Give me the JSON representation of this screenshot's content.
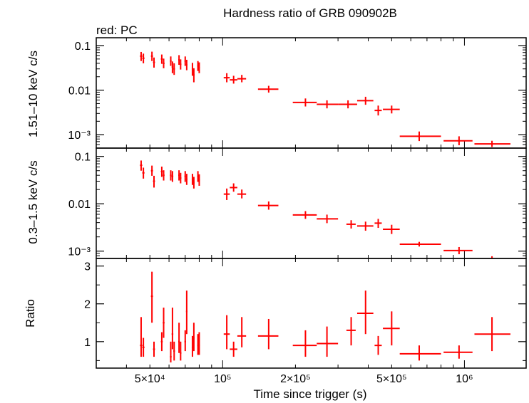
{
  "title": "Hardness ratio of GRB 090902B",
  "legend_label": "red: PC",
  "colors": {
    "data": "#ff0000",
    "axes": "#000000",
    "background": "#ffffff"
  },
  "chart_data": [
    {
      "type": "scatter",
      "panel": "hard",
      "ylabel": "1.51–10 keV c/s",
      "xscale": "log",
      "yscale": "log",
      "xlim": [
        30000,
        1800000
      ],
      "ylim": [
        0.0005,
        0.15
      ],
      "yticks": [
        {
          "value": 0.1,
          "label": "0.1"
        },
        {
          "value": 0.01,
          "label": "0.01"
        },
        {
          "value": 0.001,
          "label": "10⁻³"
        }
      ],
      "series": [
        {
          "points": [
            {
              "x": 46000,
              "x_lo": 45500,
              "x_hi": 46500,
              "y": 0.058,
              "y_lo": 0.045,
              "y_hi": 0.072
            },
            {
              "x": 47000,
              "x_lo": 46500,
              "x_hi": 47500,
              "y": 0.052,
              "y_lo": 0.04,
              "y_hi": 0.066
            },
            {
              "x": 51000,
              "x_lo": 50500,
              "x_hi": 51500,
              "y": 0.058,
              "y_lo": 0.045,
              "y_hi": 0.073
            },
            {
              "x": 52000,
              "x_lo": 51500,
              "x_hi": 52500,
              "y": 0.042,
              "y_lo": 0.032,
              "y_hi": 0.054
            },
            {
              "x": 56000,
              "x_lo": 55500,
              "x_hi": 56500,
              "y": 0.05,
              "y_lo": 0.039,
              "y_hi": 0.063
            },
            {
              "x": 57000,
              "x_lo": 56500,
              "x_hi": 57500,
              "y": 0.04,
              "y_lo": 0.031,
              "y_hi": 0.051
            },
            {
              "x": 61000,
              "x_lo": 60500,
              "x_hi": 61500,
              "y": 0.045,
              "y_lo": 0.035,
              "y_hi": 0.057
            },
            {
              "x": 62000,
              "x_lo": 61500,
              "x_hi": 62500,
              "y": 0.033,
              "y_lo": 0.024,
              "y_hi": 0.044
            },
            {
              "x": 63000,
              "x_lo": 62500,
              "x_hi": 63500,
              "y": 0.03,
              "y_lo": 0.022,
              "y_hi": 0.04
            },
            {
              "x": 66000,
              "x_lo": 65500,
              "x_hi": 66500,
              "y": 0.048,
              "y_lo": 0.037,
              "y_hi": 0.061
            },
            {
              "x": 67000,
              "x_lo": 66500,
              "x_hi": 67500,
              "y": 0.038,
              "y_lo": 0.029,
              "y_hi": 0.049
            },
            {
              "x": 70000,
              "x_lo": 69500,
              "x_hi": 70500,
              "y": 0.045,
              "y_lo": 0.035,
              "y_hi": 0.057
            },
            {
              "x": 71000,
              "x_lo": 70500,
              "x_hi": 71500,
              "y": 0.037,
              "y_lo": 0.028,
              "y_hi": 0.048
            },
            {
              "x": 75000,
              "x_lo": 74500,
              "x_hi": 75500,
              "y": 0.03,
              "y_lo": 0.021,
              "y_hi": 0.041
            },
            {
              "x": 76000,
              "x_lo": 75500,
              "x_hi": 76500,
              "y": 0.022,
              "y_lo": 0.015,
              "y_hi": 0.031
            },
            {
              "x": 79000,
              "x_lo": 78500,
              "x_hi": 79500,
              "y": 0.035,
              "y_lo": 0.027,
              "y_hi": 0.045
            },
            {
              "x": 80000,
              "x_lo": 79500,
              "x_hi": 80500,
              "y": 0.032,
              "y_lo": 0.024,
              "y_hi": 0.042
            },
            {
              "x": 104000,
              "x_lo": 101000,
              "x_hi": 107000,
              "y": 0.019,
              "y_lo": 0.015,
              "y_hi": 0.024
            },
            {
              "x": 111000,
              "x_lo": 107000,
              "x_hi": 115000,
              "y": 0.017,
              "y_lo": 0.014,
              "y_hi": 0.021
            },
            {
              "x": 120000,
              "x_lo": 115000,
              "x_hi": 125000,
              "y": 0.018,
              "y_lo": 0.015,
              "y_hi": 0.022
            },
            {
              "x": 155000,
              "x_lo": 140000,
              "x_hi": 170000,
              "y": 0.0105,
              "y_lo": 0.0088,
              "y_hi": 0.0125
            },
            {
              "x": 220000,
              "x_lo": 195000,
              "x_hi": 245000,
              "y": 0.0053,
              "y_lo": 0.0043,
              "y_hi": 0.0065
            },
            {
              "x": 270000,
              "x_lo": 245000,
              "x_hi": 300000,
              "y": 0.0048,
              "y_lo": 0.0039,
              "y_hi": 0.0059
            },
            {
              "x": 330000,
              "x_lo": 300000,
              "x_hi": 360000,
              "y": 0.0048,
              "y_lo": 0.0039,
              "y_hi": 0.0059
            },
            {
              "x": 390000,
              "x_lo": 360000,
              "x_hi": 420000,
              "y": 0.0058,
              "y_lo": 0.0047,
              "y_hi": 0.0071
            },
            {
              "x": 440000,
              "x_lo": 425000,
              "x_hi": 455000,
              "y": 0.0035,
              "y_lo": 0.0027,
              "y_hi": 0.0045
            },
            {
              "x": 500000,
              "x_lo": 460000,
              "x_hi": 540000,
              "y": 0.0037,
              "y_lo": 0.003,
              "y_hi": 0.0045
            },
            {
              "x": 650000,
              "x_lo": 540000,
              "x_hi": 800000,
              "y": 0.00092,
              "y_lo": 0.00072,
              "y_hi": 0.00118
            },
            {
              "x": 950000,
              "x_lo": 820000,
              "x_hi": 1080000,
              "y": 0.00073,
              "y_lo": 0.00058,
              "y_hi": 0.00092
            },
            {
              "x": 1300000,
              "x_lo": 1100000,
              "x_hi": 1550000,
              "y": 0.00062,
              "y_lo": 0.00053,
              "y_hi": 0.00073
            }
          ]
        }
      ]
    },
    {
      "type": "scatter",
      "panel": "soft",
      "ylabel": "0.3–1.5 keV c/s",
      "xscale": "log",
      "yscale": "log",
      "xlim": [
        30000,
        1800000
      ],
      "ylim": [
        0.0007,
        0.15
      ],
      "yticks": [
        {
          "value": 0.1,
          "label": "0.1"
        },
        {
          "value": 0.01,
          "label": "0.01"
        },
        {
          "value": 0.001,
          "label": "10⁻³"
        }
      ],
      "series": [
        {
          "points": [
            {
              "x": 46000,
              "x_lo": 45500,
              "x_hi": 46500,
              "y": 0.065,
              "y_lo": 0.05,
              "y_hi": 0.082
            },
            {
              "x": 47000,
              "x_lo": 46500,
              "x_hi": 47500,
              "y": 0.045,
              "y_lo": 0.034,
              "y_hi": 0.058
            },
            {
              "x": 51000,
              "x_lo": 50500,
              "x_hi": 51500,
              "y": 0.05,
              "y_lo": 0.039,
              "y_hi": 0.064
            },
            {
              "x": 52000,
              "x_lo": 51500,
              "x_hi": 52500,
              "y": 0.03,
              "y_lo": 0.022,
              "y_hi": 0.039
            },
            {
              "x": 56000,
              "x_lo": 55500,
              "x_hi": 56500,
              "y": 0.048,
              "y_lo": 0.037,
              "y_hi": 0.061
            },
            {
              "x": 57000,
              "x_lo": 56500,
              "x_hi": 57500,
              "y": 0.04,
              "y_lo": 0.031,
              "y_hi": 0.051
            },
            {
              "x": 61000,
              "x_lo": 60500,
              "x_hi": 61500,
              "y": 0.04,
              "y_lo": 0.031,
              "y_hi": 0.051
            },
            {
              "x": 62000,
              "x_lo": 61500,
              "x_hi": 62500,
              "y": 0.038,
              "y_lo": 0.029,
              "y_hi": 0.049
            },
            {
              "x": 66000,
              "x_lo": 65500,
              "x_hi": 66500,
              "y": 0.04,
              "y_lo": 0.031,
              "y_hi": 0.051
            },
            {
              "x": 67000,
              "x_lo": 66500,
              "x_hi": 67500,
              "y": 0.035,
              "y_lo": 0.027,
              "y_hi": 0.045
            },
            {
              "x": 70000,
              "x_lo": 69500,
              "x_hi": 70500,
              "y": 0.038,
              "y_lo": 0.029,
              "y_hi": 0.049
            },
            {
              "x": 71000,
              "x_lo": 70500,
              "x_hi": 71500,
              "y": 0.033,
              "y_lo": 0.025,
              "y_hi": 0.043
            },
            {
              "x": 75000,
              "x_lo": 74500,
              "x_hi": 75500,
              "y": 0.033,
              "y_lo": 0.025,
              "y_hi": 0.043
            },
            {
              "x": 76000,
              "x_lo": 75500,
              "x_hi": 76500,
              "y": 0.028,
              "y_lo": 0.021,
              "y_hi": 0.037
            },
            {
              "x": 79000,
              "x_lo": 78500,
              "x_hi": 79500,
              "y": 0.038,
              "y_lo": 0.029,
              "y_hi": 0.049
            },
            {
              "x": 80000,
              "x_lo": 79500,
              "x_hi": 80500,
              "y": 0.032,
              "y_lo": 0.024,
              "y_hi": 0.042
            },
            {
              "x": 104000,
              "x_lo": 101000,
              "x_hi": 107000,
              "y": 0.016,
              "y_lo": 0.012,
              "y_hi": 0.021
            },
            {
              "x": 111000,
              "x_lo": 107000,
              "x_hi": 115000,
              "y": 0.022,
              "y_lo": 0.018,
              "y_hi": 0.027
            },
            {
              "x": 120000,
              "x_lo": 115000,
              "x_hi": 125000,
              "y": 0.016,
              "y_lo": 0.013,
              "y_hi": 0.02
            },
            {
              "x": 155000,
              "x_lo": 140000,
              "x_hi": 170000,
              "y": 0.0092,
              "y_lo": 0.0075,
              "y_hi": 0.0112
            },
            {
              "x": 220000,
              "x_lo": 195000,
              "x_hi": 245000,
              "y": 0.0058,
              "y_lo": 0.0048,
              "y_hi": 0.007
            },
            {
              "x": 270000,
              "x_lo": 245000,
              "x_hi": 300000,
              "y": 0.0048,
              "y_lo": 0.0039,
              "y_hi": 0.0059
            },
            {
              "x": 340000,
              "x_lo": 325000,
              "x_hi": 355000,
              "y": 0.0037,
              "y_lo": 0.003,
              "y_hi": 0.0045
            },
            {
              "x": 390000,
              "x_lo": 360000,
              "x_hi": 420000,
              "y": 0.0034,
              "y_lo": 0.0027,
              "y_hi": 0.0042
            },
            {
              "x": 440000,
              "x_lo": 425000,
              "x_hi": 455000,
              "y": 0.0039,
              "y_lo": 0.0031,
              "y_hi": 0.0048
            },
            {
              "x": 500000,
              "x_lo": 460000,
              "x_hi": 540000,
              "y": 0.0029,
              "y_lo": 0.0023,
              "y_hi": 0.0036
            },
            {
              "x": 650000,
              "x_lo": 540000,
              "x_hi": 800000,
              "y": 0.0014,
              "y_lo": 0.00125,
              "y_hi": 0.00157
            },
            {
              "x": 950000,
              "x_lo": 820000,
              "x_hi": 1080000,
              "y": 0.00103,
              "y_lo": 0.00086,
              "y_hi": 0.00122
            },
            {
              "x": 1300000,
              "x_lo": 1300000,
              "x_hi": 1300000,
              "y": 0.00074,
              "y_lo": 0.0007,
              "y_hi": 0.00078
            }
          ]
        }
      ]
    },
    {
      "type": "scatter",
      "panel": "ratio",
      "ylabel": "Ratio",
      "xlabel": "Time since trigger (s)",
      "xscale": "log",
      "yscale": "linear",
      "xlim": [
        30000,
        1800000
      ],
      "ylim": [
        0.3,
        3.2
      ],
      "yticks": [
        {
          "value": 1,
          "label": "1"
        },
        {
          "value": 2,
          "label": "2"
        },
        {
          "value": 3,
          "label": "3"
        }
      ],
      "xticks": [
        {
          "value": 50000,
          "label": "5×10⁴"
        },
        {
          "value": 100000,
          "label": "10⁵"
        },
        {
          "value": 200000,
          "label": "2×10⁵"
        },
        {
          "value": 500000,
          "label": "5×10⁵"
        },
        {
          "value": 1000000,
          "label": "10⁶"
        }
      ],
      "series": [
        {
          "points": [
            {
              "x": 46000,
              "x_lo": 45500,
              "x_hi": 46500,
              "y": 0.9,
              "y_lo": 0.6,
              "y_hi": 1.65
            },
            {
              "x": 47000,
              "x_lo": 46500,
              "x_hi": 47500,
              "y": 0.85,
              "y_lo": 0.6,
              "y_hi": 1.1
            },
            {
              "x": 51000,
              "x_lo": 50500,
              "x_hi": 51500,
              "y": 2.2,
              "y_lo": 1.5,
              "y_hi": 2.85
            },
            {
              "x": 52000,
              "x_lo": 51500,
              "x_hi": 52500,
              "y": 0.8,
              "y_lo": 0.6,
              "y_hi": 1.0
            },
            {
              "x": 56000,
              "x_lo": 55500,
              "x_hi": 56500,
              "y": 1.0,
              "y_lo": 0.75,
              "y_hi": 1.25
            },
            {
              "x": 57000,
              "x_lo": 56500,
              "x_hi": 57500,
              "y": 1.5,
              "y_lo": 1.1,
              "y_hi": 1.9
            },
            {
              "x": 61000,
              "x_lo": 60500,
              "x_hi": 61500,
              "y": 0.6,
              "y_lo": 0.45,
              "y_hi": 1.0
            },
            {
              "x": 62000,
              "x_lo": 61500,
              "x_hi": 62500,
              "y": 1.2,
              "y_lo": 0.8,
              "y_hi": 1.9
            },
            {
              "x": 63000,
              "x_lo": 62500,
              "x_hi": 63500,
              "y": 0.75,
              "y_lo": 0.5,
              "y_hi": 1.0
            },
            {
              "x": 66000,
              "x_lo": 65500,
              "x_hi": 66500,
              "y": 1.0,
              "y_lo": 0.7,
              "y_hi": 1.5
            },
            {
              "x": 67000,
              "x_lo": 66500,
              "x_hi": 67500,
              "y": 0.7,
              "y_lo": 0.5,
              "y_hi": 1.0
            },
            {
              "x": 70000,
              "x_lo": 69500,
              "x_hi": 70500,
              "y": 1.0,
              "y_lo": 0.75,
              "y_hi": 1.3
            },
            {
              "x": 71000,
              "x_lo": 70500,
              "x_hi": 71500,
              "y": 1.8,
              "y_lo": 1.2,
              "y_hi": 2.35
            },
            {
              "x": 75000,
              "x_lo": 74500,
              "x_hi": 75500,
              "y": 0.85,
              "y_lo": 0.6,
              "y_hi": 1.15
            },
            {
              "x": 76000,
              "x_lo": 75500,
              "x_hi": 76500,
              "y": 1.1,
              "y_lo": 0.75,
              "y_hi": 1.5
            },
            {
              "x": 79000,
              "x_lo": 78500,
              "x_hi": 79500,
              "y": 0.9,
              "y_lo": 0.65,
              "y_hi": 1.2
            },
            {
              "x": 80000,
              "x_lo": 79500,
              "x_hi": 80500,
              "y": 0.9,
              "y_lo": 0.65,
              "y_hi": 1.25
            },
            {
              "x": 104000,
              "x_lo": 101000,
              "x_hi": 107000,
              "y": 1.2,
              "y_lo": 0.8,
              "y_hi": 1.7
            },
            {
              "x": 111000,
              "x_lo": 107000,
              "x_hi": 115000,
              "y": 0.8,
              "y_lo": 0.6,
              "y_hi": 1.0
            },
            {
              "x": 120000,
              "x_lo": 115000,
              "x_hi": 125000,
              "y": 1.15,
              "y_lo": 0.85,
              "y_hi": 1.65
            },
            {
              "x": 155000,
              "x_lo": 140000,
              "x_hi": 170000,
              "y": 1.15,
              "y_lo": 0.8,
              "y_hi": 1.6
            },
            {
              "x": 220000,
              "x_lo": 195000,
              "x_hi": 245000,
              "y": 0.9,
              "y_lo": 0.6,
              "y_hi": 1.3
            },
            {
              "x": 270000,
              "x_lo": 245000,
              "x_hi": 300000,
              "y": 0.95,
              "y_lo": 0.6,
              "y_hi": 1.4
            },
            {
              "x": 340000,
              "x_lo": 325000,
              "x_hi": 355000,
              "y": 1.3,
              "y_lo": 0.9,
              "y_hi": 1.65
            },
            {
              "x": 390000,
              "x_lo": 360000,
              "x_hi": 420000,
              "y": 1.75,
              "y_lo": 1.2,
              "y_hi": 2.35
            },
            {
              "x": 440000,
              "x_lo": 425000,
              "x_hi": 455000,
              "y": 0.9,
              "y_lo": 0.65,
              "y_hi": 1.15
            },
            {
              "x": 500000,
              "x_lo": 460000,
              "x_hi": 540000,
              "y": 1.35,
              "y_lo": 0.9,
              "y_hi": 1.8
            },
            {
              "x": 650000,
              "x_lo": 540000,
              "x_hi": 800000,
              "y": 0.68,
              "y_lo": 0.5,
              "y_hi": 0.9
            },
            {
              "x": 950000,
              "x_lo": 820000,
              "x_hi": 1080000,
              "y": 0.72,
              "y_lo": 0.55,
              "y_hi": 0.9
            },
            {
              "x": 1300000,
              "x_lo": 1100000,
              "x_hi": 1550000,
              "y": 1.2,
              "y_lo": 0.75,
              "y_hi": 1.65
            }
          ]
        }
      ]
    }
  ]
}
